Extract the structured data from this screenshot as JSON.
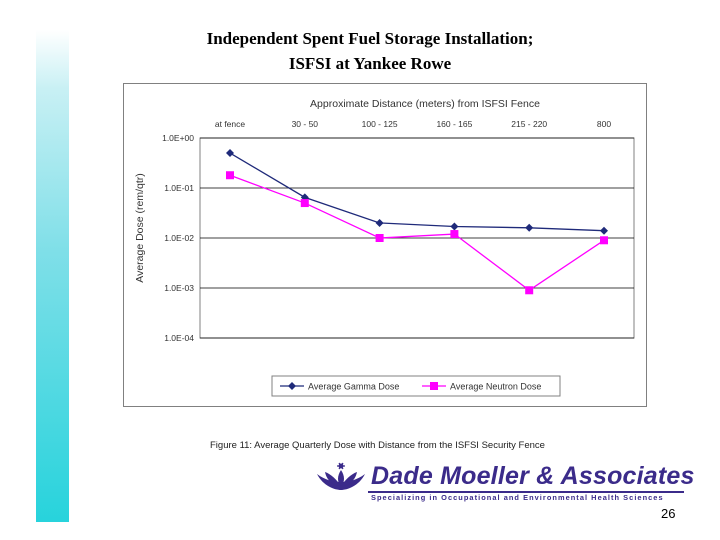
{
  "slide": {
    "title_line1": "Independent Spent Fuel Storage Installation;",
    "title_line2": "ISFSI at Yankee Rowe",
    "page_number": "26"
  },
  "figure": {
    "caption": "Figure 11: Average Quarterly Dose with Distance from the ISFSI Security Fence"
  },
  "logo": {
    "name": "Dade Moeller & Associates",
    "tagline": "Specializing in Occupational and Environmental Health Sciences"
  },
  "colors": {
    "accent_bar": "#27d3dc",
    "gamma_series": "#1f2a7a",
    "neutron_series": "#ff00ff",
    "logo": "#3b2b8a"
  },
  "chart_data": {
    "type": "line",
    "title": "Approximate Distance (meters) from ISFSI Fence",
    "ylabel": "Average Dose (rem/qtr)",
    "categories": [
      "at fence",
      "30 - 50",
      "100 - 125",
      "160 - 165",
      "215 - 220",
      "800"
    ],
    "yscale": "log",
    "ylim": [
      0.0001,
      1
    ],
    "yticks": [
      1,
      0.1,
      0.01,
      0.001,
      0.0001
    ],
    "ytick_labels": [
      "1.0E+00",
      "1.0E-01",
      "1.0E-02",
      "1.0E-03",
      "1.0E-04"
    ],
    "grid": true,
    "legend_position": "bottom",
    "series": [
      {
        "name": "Average Gamma Dose",
        "marker": "diamond",
        "values": [
          0.5,
          0.065,
          0.02,
          0.017,
          0.016,
          0.014
        ]
      },
      {
        "name": "Average Neutron Dose",
        "marker": "square",
        "values": [
          0.18,
          0.05,
          0.01,
          0.012,
          0.0009,
          0.009
        ]
      }
    ]
  }
}
